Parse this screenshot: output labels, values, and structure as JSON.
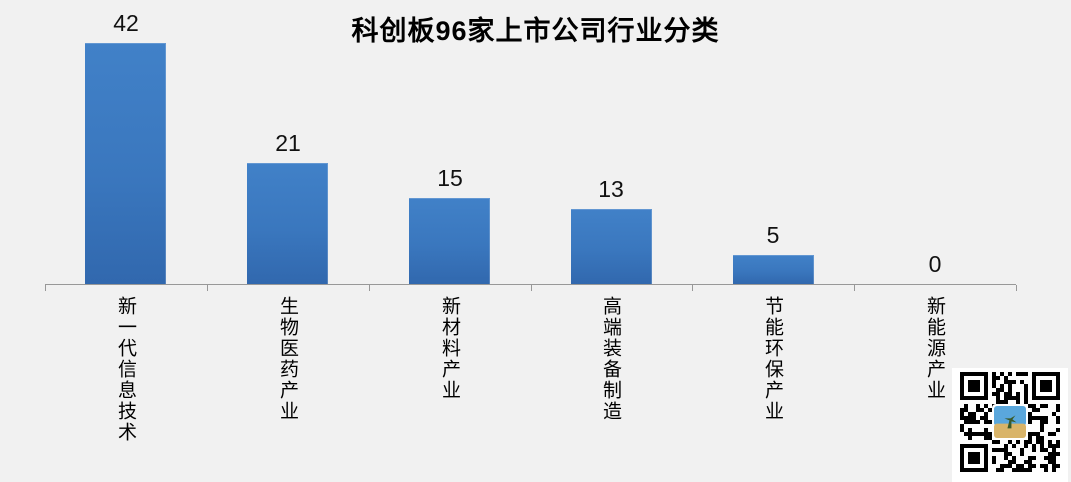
{
  "title": "科创板96家上市公司行业分类",
  "chart_data": {
    "type": "bar",
    "title": "科创板96家上市公司行业分类",
    "categories": [
      "新一代信息技术",
      "生物医药产业",
      "新材料产业",
      "高端装备制造",
      "节能环保产业",
      "新能源产业"
    ],
    "values": [
      42,
      21,
      15,
      13,
      5,
      0
    ],
    "xlabel": "",
    "ylabel": "",
    "ylim": [
      0,
      42
    ],
    "grid": false,
    "legend": false,
    "data_labels_shown": true,
    "category_label_orientation": "vertical-stacked"
  },
  "colors": {
    "background": "#F1F1F1",
    "bar_fill_top": "#4181C8",
    "bar_fill_bottom": "#3168AE",
    "axis_line": "#989898",
    "title_color": "#000000",
    "label_color": "#111111"
  },
  "qr_code": {
    "present": true,
    "description": "qr-code-with-photo-center-thumbnail",
    "center_logo": "desert-scene-photo"
  }
}
